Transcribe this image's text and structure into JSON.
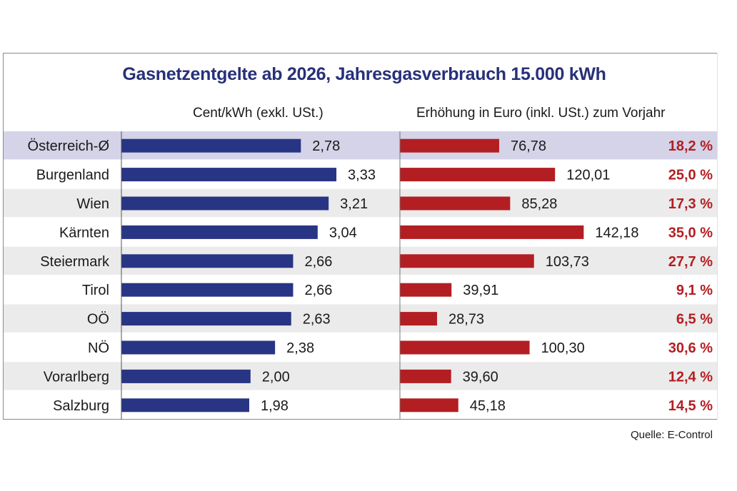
{
  "chart_data": {
    "type": "bar",
    "title": "Gasnetzentgelte ab 2026, Jahresgasverbrauch 15.000 kWh",
    "source": "Quelle: E-Control",
    "categories": [
      "Österreich-Ø",
      "Burgenland",
      "Wien",
      "Kärnten",
      "Steiermark",
      "Tirol",
      "OÖ",
      "NÖ",
      "Vorarlberg",
      "Salzburg"
    ],
    "highlight_category": "Österreich-Ø",
    "series": [
      {
        "name": "Cent/kWh (exkl. USt.)",
        "color": "#283584",
        "values": [
          2.78,
          3.33,
          3.21,
          3.04,
          2.66,
          2.66,
          2.63,
          2.38,
          2.0,
          1.98
        ],
        "labels": [
          "2,78",
          "3,33",
          "3,21",
          "3,04",
          "2,66",
          "2,66",
          "2,63",
          "2,38",
          "2,00",
          "1,98"
        ]
      },
      {
        "name": "Erhöhung in Euro (inkl. USt.) zum Vorjahr",
        "color": "#b31e22",
        "values": [
          76.78,
          120.01,
          85.28,
          142.18,
          103.73,
          39.91,
          28.73,
          100.3,
          39.6,
          45.18
        ],
        "labels": [
          "76,78",
          "120,01",
          "85,28",
          "142,18",
          "103,73",
          "39,91",
          "28,73",
          "100,30",
          "39,60",
          "45,18"
        ],
        "percent_labels": [
          "18,2 %",
          "25,0 %",
          "17,3 %",
          "35,0 %",
          "27,7 %",
          "9,1 %",
          "6,5 %",
          "30,6 %",
          "12,4 %",
          "14,5 %"
        ],
        "percent_values": [
          18.2,
          25.0,
          17.3,
          35.0,
          27.7,
          9.1,
          6.5,
          30.6,
          12.4,
          14.5
        ]
      }
    ],
    "colors": {
      "title": "#27307a",
      "row_highlight": "#d4d3e8",
      "row_alt": "#ebebeb",
      "percent_text": "#b31e22"
    },
    "xlabel": "",
    "ylabel": "",
    "grid": false,
    "legend": "none"
  }
}
